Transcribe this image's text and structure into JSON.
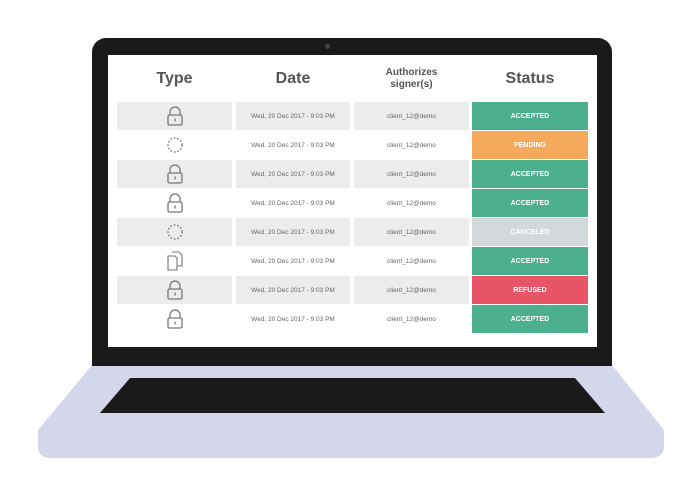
{
  "table": {
    "headers": {
      "type": "Type",
      "date": "Date",
      "signer": "Authorizes signer(s)",
      "status": "Status"
    },
    "rows": [
      {
        "icon": "lock-icon",
        "date": "Wed, 20 Dec 2017 - 9:03 PM",
        "signer": "client_12@demo",
        "status": "ACCEPTED",
        "color": "#4caf8e"
      },
      {
        "icon": "pending-circle-icon",
        "date": "Wed, 20 Dec 2017 - 9:03 PM",
        "signer": "client_12@demo",
        "status": "PENDING",
        "color": "#f5a95a"
      },
      {
        "icon": "lock-icon",
        "date": "Wed, 20 Dec 2017 - 9:03 PM",
        "signer": "client_12@demo",
        "status": "ACCEPTED",
        "color": "#4caf8e"
      },
      {
        "icon": "lock-icon",
        "date": "Wed, 20 Dec 2017 - 9:03 PM",
        "signer": "client_12@demo",
        "status": "ACCEPTED",
        "color": "#4caf8e"
      },
      {
        "icon": "pending-circle-icon",
        "date": "Wed, 20 Dec 2017 - 9:03 PM",
        "signer": "client_12@demo",
        "status": "CANCELED",
        "color": "#d3d8db"
      },
      {
        "icon": "documents-icon",
        "date": "Wed, 20 Dec 2017 - 9:03 PM",
        "signer": "client_12@demo",
        "status": "ACCEPTED",
        "color": "#4caf8e"
      },
      {
        "icon": "lock-icon",
        "date": "Wed, 20 Dec 2017 - 9:03 PM",
        "signer": "client_12@demo",
        "status": "REFUSED",
        "color": "#e85468"
      },
      {
        "icon": "lock-icon",
        "date": "Wed, 20 Dec 2017 - 9:03 PM",
        "signer": "client_12@demo",
        "status": "ACCEPTED",
        "color": "#4caf8e"
      }
    ]
  }
}
